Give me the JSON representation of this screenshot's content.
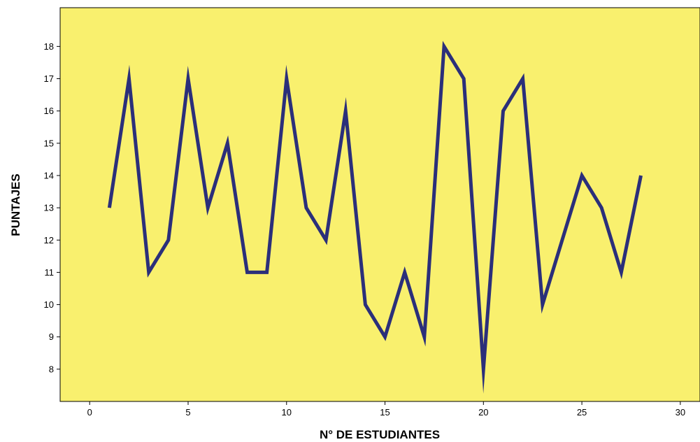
{
  "chart_data": {
    "type": "line",
    "title": "",
    "xlabel": "N° DE ESTUDIANTES",
    "ylabel": "PUNTAJES",
    "x": [
      1,
      2,
      3,
      4,
      5,
      6,
      7,
      8,
      9,
      10,
      11,
      12,
      13,
      14,
      15,
      16,
      17,
      18,
      19,
      20,
      21,
      22,
      23,
      24,
      25,
      26,
      27,
      28
    ],
    "series": [
      {
        "values": [
          13,
          17,
          11,
          12,
          17,
          13,
          15,
          11,
          11,
          17,
          13,
          12,
          16,
          10,
          9,
          11,
          9,
          18,
          17,
          8,
          16,
          17,
          10,
          12,
          14,
          13,
          11,
          14
        ]
      }
    ],
    "xlim": [
      -1.5,
      31
    ],
    "ylim": [
      7,
      19.2
    ],
    "xticks": [
      0,
      5,
      10,
      15,
      20,
      25,
      30
    ],
    "yticks": [
      8,
      9,
      10,
      11,
      12,
      13,
      14,
      15,
      16,
      17,
      18
    ],
    "grid": false,
    "legend": "none",
    "colors": {
      "plot_background": "#F9F06E",
      "line": "#2B2F7A",
      "axis": "#000000"
    }
  }
}
